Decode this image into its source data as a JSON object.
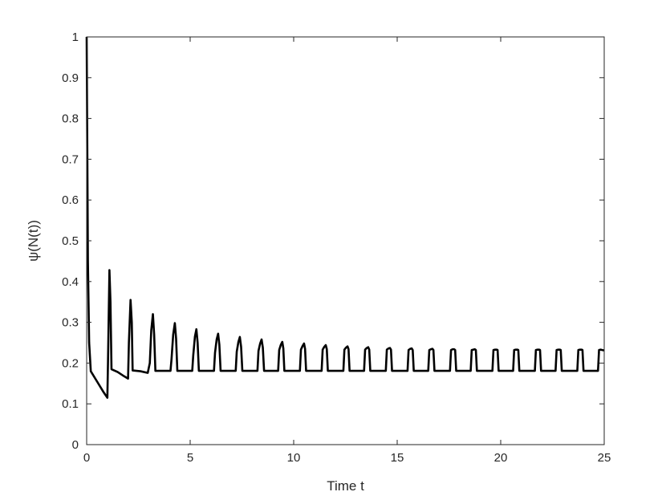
{
  "chart_data": {
    "type": "line",
    "title": "",
    "xlabel": "Time t",
    "ylabel": "ψ(N(t))",
    "xlim": [
      0,
      25
    ],
    "ylim": [
      0,
      1
    ],
    "x_ticks": [
      0,
      5,
      10,
      15,
      20,
      25
    ],
    "y_ticks": [
      0,
      0.1,
      0.2,
      0.3,
      0.4,
      0.5,
      0.6,
      0.7,
      0.8,
      0.9,
      1
    ],
    "x_tick_labels": [
      "0",
      "5",
      "10",
      "15",
      "20",
      "25"
    ],
    "y_tick_labels": [
      "0",
      "0.1",
      "0.2",
      "0.3",
      "0.4",
      "0.5",
      "0.6",
      "0.7",
      "0.8",
      "0.9",
      "1"
    ],
    "grid": false,
    "line_color": "#000000",
    "series": [
      {
        "x": [
          0,
          0.06,
          0.12,
          0.2,
          0.5,
          0.8,
          1.0,
          1.03,
          1.1,
          1.15,
          1.2,
          1.5,
          1.8,
          2.0,
          2.04,
          2.12,
          2.18,
          2.22,
          2.6,
          2.95,
          3.05,
          3.12,
          3.2,
          3.26,
          3.32,
          4.05,
          4.1,
          4.18,
          4.26,
          4.32,
          4.38,
          5.1,
          5.15,
          5.23,
          5.3,
          5.36,
          5.42,
          6.15,
          6.2,
          6.28,
          6.35,
          6.41,
          6.47,
          7.2,
          7.25,
          7.33,
          7.4,
          7.46,
          7.52,
          8.25,
          8.3,
          8.38,
          8.45,
          8.51,
          8.57,
          9.25,
          9.3,
          9.38,
          9.45,
          9.5,
          9.55,
          10.3,
          10.35,
          10.43,
          10.5,
          10.55,
          10.6,
          11.35,
          11.4,
          11.48,
          11.55,
          11.6,
          11.65,
          12.4,
          12.45,
          12.53,
          12.6,
          12.65,
          12.7,
          13.4,
          13.45,
          13.53,
          13.6,
          13.65,
          13.7,
          14.45,
          14.5,
          14.58,
          14.65,
          14.7,
          14.75,
          15.5,
          15.55,
          15.63,
          15.7,
          15.75,
          15.8,
          16.5,
          16.55,
          16.63,
          16.7,
          16.75,
          16.8,
          17.55,
          17.6,
          17.68,
          17.75,
          17.8,
          17.85,
          18.55,
          18.6,
          18.68,
          18.75,
          18.8,
          18.85,
          19.6,
          19.65,
          19.73,
          19.8,
          19.85,
          19.9,
          20.6,
          20.65,
          20.73,
          20.8,
          20.85,
          20.9,
          21.65,
          21.7,
          21.78,
          21.85,
          21.9,
          21.95,
          22.65,
          22.7,
          22.78,
          22.85,
          22.9,
          22.95,
          23.7,
          23.75,
          23.83,
          23.9,
          23.95,
          24.0,
          24.7,
          24.75,
          24.83,
          24.9,
          25.0
        ],
        "y": [
          1.0,
          0.45,
          0.25,
          0.18,
          0.155,
          0.13,
          0.115,
          0.2,
          0.428,
          0.35,
          0.185,
          0.178,
          0.168,
          0.162,
          0.25,
          0.355,
          0.3,
          0.182,
          0.18,
          0.176,
          0.2,
          0.28,
          0.32,
          0.27,
          0.181,
          0.181,
          0.21,
          0.27,
          0.298,
          0.26,
          0.181,
          0.181,
          0.22,
          0.265,
          0.283,
          0.25,
          0.181,
          0.181,
          0.225,
          0.258,
          0.272,
          0.245,
          0.181,
          0.181,
          0.228,
          0.252,
          0.264,
          0.24,
          0.181,
          0.181,
          0.23,
          0.248,
          0.258,
          0.238,
          0.181,
          0.181,
          0.232,
          0.245,
          0.252,
          0.236,
          0.181,
          0.181,
          0.233,
          0.242,
          0.248,
          0.235,
          0.181,
          0.181,
          0.233,
          0.24,
          0.244,
          0.234,
          0.181,
          0.181,
          0.233,
          0.238,
          0.241,
          0.234,
          0.181,
          0.181,
          0.233,
          0.237,
          0.239,
          0.233,
          0.181,
          0.181,
          0.233,
          0.236,
          0.237,
          0.233,
          0.181,
          0.181,
          0.232,
          0.235,
          0.236,
          0.232,
          0.181,
          0.181,
          0.232,
          0.234,
          0.235,
          0.232,
          0.181,
          0.181,
          0.232,
          0.234,
          0.234,
          0.232,
          0.181,
          0.181,
          0.232,
          0.233,
          0.234,
          0.232,
          0.181,
          0.181,
          0.232,
          0.233,
          0.233,
          0.232,
          0.181,
          0.181,
          0.232,
          0.233,
          0.233,
          0.232,
          0.181,
          0.181,
          0.232,
          0.233,
          0.233,
          0.232,
          0.181,
          0.181,
          0.232,
          0.233,
          0.233,
          0.232,
          0.181,
          0.181,
          0.232,
          0.233,
          0.233,
          0.232,
          0.181,
          0.181,
          0.232,
          0.233,
          0.232,
          0.231
        ]
      }
    ]
  }
}
